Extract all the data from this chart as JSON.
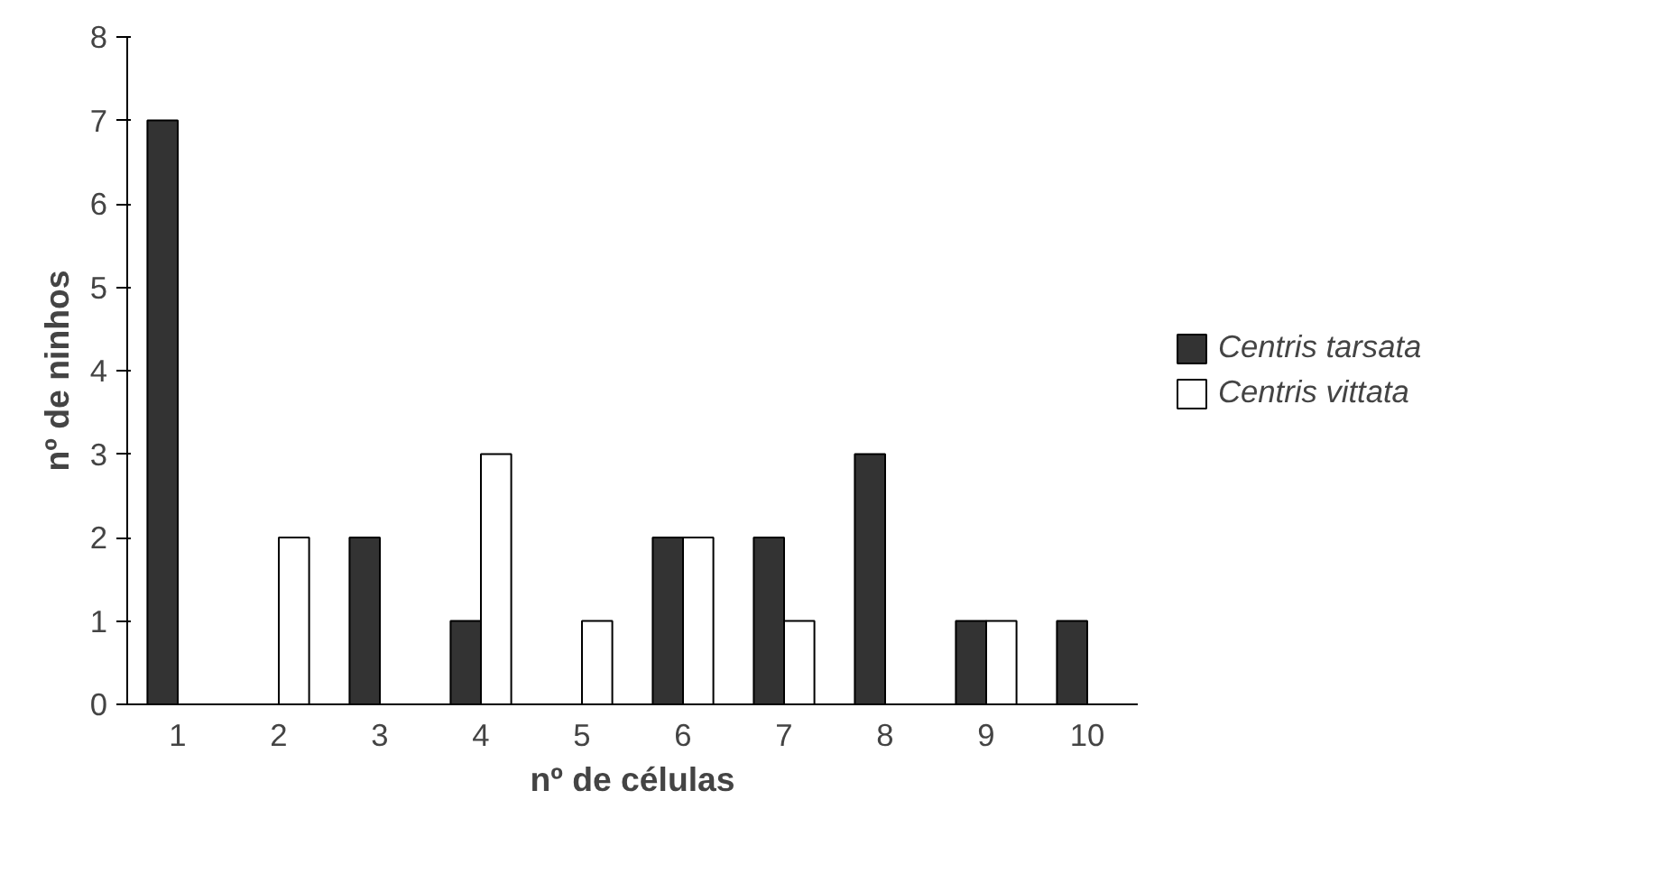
{
  "chart_data": {
    "type": "bar",
    "xlabel": "nº de células",
    "ylabel": "nº de ninhos",
    "categories": [
      "1",
      "2",
      "3",
      "4",
      "5",
      "6",
      "7",
      "8",
      "9",
      "10"
    ],
    "series": [
      {
        "name": "Centris tarsata",
        "color": "#333333",
        "values": [
          7,
          0,
          2,
          1,
          0,
          2,
          2,
          3,
          1,
          1
        ]
      },
      {
        "name": "Centris vittata",
        "color": "#ffffff",
        "values": [
          0,
          2,
          0,
          3,
          1,
          2,
          1,
          0,
          1,
          0
        ]
      }
    ],
    "ylim": [
      0,
      8
    ],
    "yticks": [
      0,
      1,
      2,
      3,
      4,
      5,
      6,
      7,
      8
    ],
    "grid": false,
    "legend": "right"
  }
}
